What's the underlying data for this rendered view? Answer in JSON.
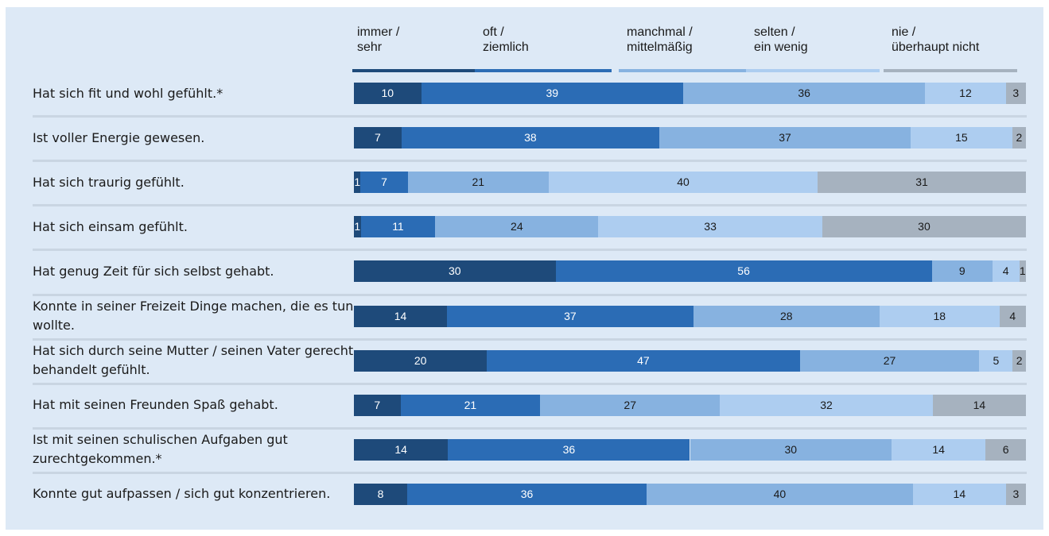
{
  "chart_data": {
    "type": "bar",
    "orientation": "horizontal",
    "stacked": true,
    "legend_position": "top",
    "xlim": [
      0,
      100
    ],
    "grid": false,
    "categories": [
      "Hat sich fit und wohl gefühlt.*",
      "Ist voller Energie gewesen.",
      "Hat sich traurig gefühlt.",
      "Hat sich einsam gefühlt.",
      "Hat genug Zeit für sich selbst gehabt.",
      "Konnte in seiner Freizeit Dinge machen, die es tun wollte.",
      "Hat sich durch seine Mutter / seinen Vater gerecht behandelt gefühlt.",
      "Hat mit seinen Freunden Spaß gehabt.",
      "Ist mit seinen schulischen Aufgaben gut zurechtgekommen.*",
      "Konnte gut aufpassen / sich gut konzentrieren."
    ],
    "series": [
      {
        "name": "immer /\nsehr",
        "color": "#1e4a7a",
        "values": [
          10,
          7,
          1,
          1,
          30,
          14,
          20,
          7,
          14,
          8
        ]
      },
      {
        "name": "oft /\nziemlich",
        "color": "#2b6cb5",
        "values": [
          39,
          38,
          7,
          11,
          56,
          37,
          47,
          21,
          36,
          36
        ]
      },
      {
        "name": "manchmal /\nmittelmäßig",
        "color": "#87b2e0",
        "values": [
          36,
          37,
          21,
          24,
          9,
          28,
          27,
          27,
          30,
          40
        ]
      },
      {
        "name": "selten /\nein wenig",
        "color": "#adcdf0",
        "values": [
          12,
          15,
          40,
          33,
          4,
          18,
          5,
          32,
          14,
          14
        ]
      },
      {
        "name": "nie /\nüberhaupt nicht",
        "color": "#a6b2bf",
        "values": [
          3,
          2,
          31,
          30,
          1,
          4,
          2,
          14,
          6,
          3
        ]
      }
    ]
  }
}
